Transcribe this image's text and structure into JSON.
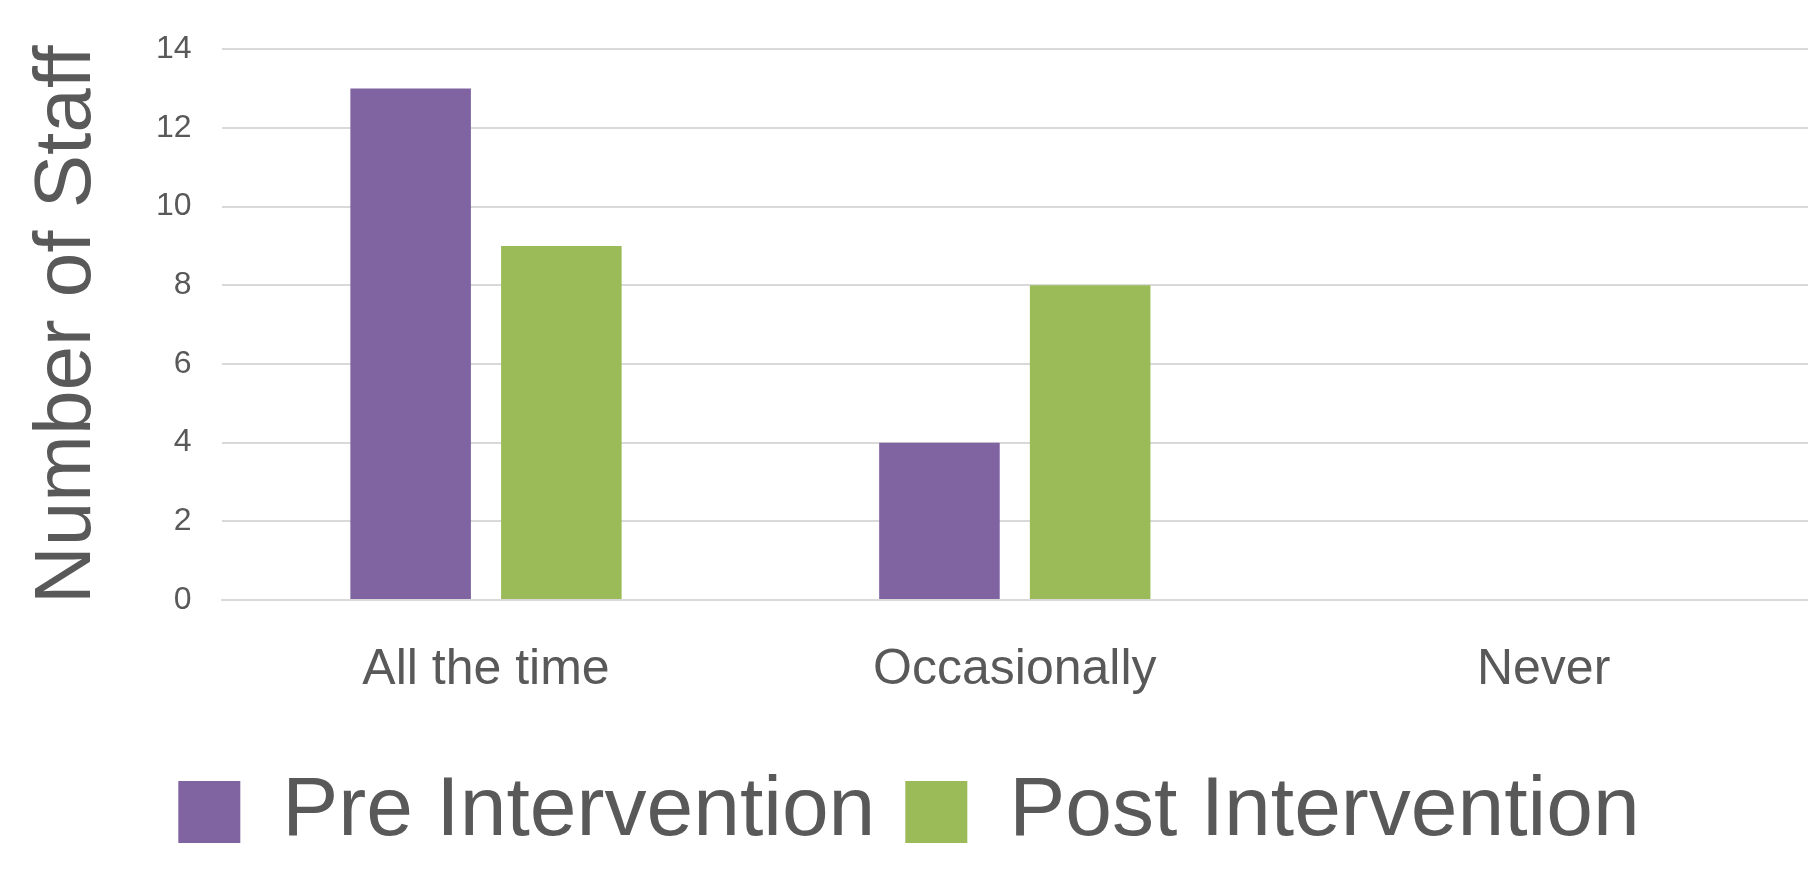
{
  "chart_data": {
    "type": "bar",
    "ylabel": "Number of Staff",
    "categories": [
      "All the time",
      "Occasionally",
      "Never"
    ],
    "series": [
      {
        "name": "Pre Intervention",
        "color": "#8064a2",
        "values": [
          13,
          4,
          0
        ]
      },
      {
        "name": "Post Intervention",
        "color": "#9bbb59",
        "values": [
          9,
          8,
          0
        ]
      }
    ],
    "ylim": [
      0,
      14
    ],
    "yticks": [
      0,
      2,
      4,
      6,
      8,
      10,
      12,
      14
    ],
    "grid": "y",
    "legend": "bottom"
  }
}
